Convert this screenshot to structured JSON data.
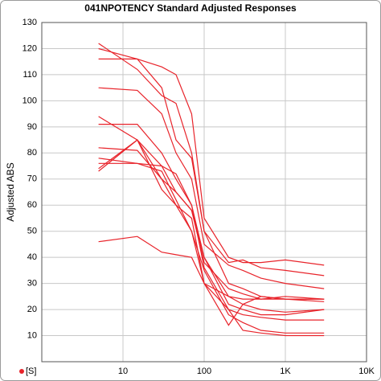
{
  "chart_data": {
    "type": "line",
    "title": "041NPOTENCY Standard Adjusted Responses",
    "y_label": "Adjusted ABS",
    "corner_label": "[S]",
    "x": [
      5,
      15,
      30,
      45,
      70,
      100,
      200,
      300,
      500,
      1000,
      3000
    ],
    "log_x": true,
    "grid": true,
    "color": "#e8232a",
    "xlim": [
      1,
      10000
    ],
    "xticks": [
      10,
      100,
      {
        "value": 1000,
        "label": "1K"
      },
      {
        "value": 10000,
        "label": "10K"
      }
    ],
    "ylim": [
      0,
      130
    ],
    "yticks": [
      10,
      20,
      30,
      40,
      50,
      60,
      70,
      80,
      90,
      100,
      110,
      120,
      130
    ],
    "series": [
      {
        "values": [
          122,
          112,
          102,
          99,
          80,
          50,
          38,
          39,
          36,
          35,
          33
        ]
      },
      {
        "values": [
          120,
          116,
          113,
          110,
          95,
          55,
          40,
          38,
          38,
          39,
          37
        ]
      },
      {
        "values": [
          116,
          116,
          105,
          85,
          78,
          50,
          30,
          28,
          25,
          24,
          24
        ]
      },
      {
        "values": [
          105,
          104,
          95,
          80,
          70,
          45,
          37,
          35,
          32,
          30,
          28
        ]
      },
      {
        "values": [
          94,
          85,
          75,
          72,
          60,
          40,
          25,
          22,
          25,
          24,
          24
        ]
      },
      {
        "values": [
          91,
          91,
          80,
          70,
          60,
          36,
          20,
          18,
          17,
          16,
          16
        ]
      },
      {
        "values": [
          82,
          81,
          70,
          65,
          58,
          38,
          28,
          26,
          24,
          24,
          23
        ]
      },
      {
        "values": [
          78,
          76,
          75,
          65,
          58,
          40,
          22,
          20,
          18,
          18,
          20
        ]
      },
      {
        "values": [
          74,
          85,
          70,
          60,
          55,
          30,
          14,
          22,
          20,
          19,
          20
        ]
      },
      {
        "values": [
          76,
          76,
          73,
          62,
          50,
          35,
          18,
          15,
          12,
          11,
          11
        ]
      },
      {
        "values": [
          73,
          85,
          66,
          60,
          50,
          30,
          20,
          12,
          11,
          10,
          10
        ]
      },
      {
        "values": [
          46,
          48,
          42,
          41,
          40,
          30,
          25,
          24,
          24,
          25,
          24
        ]
      }
    ]
  }
}
